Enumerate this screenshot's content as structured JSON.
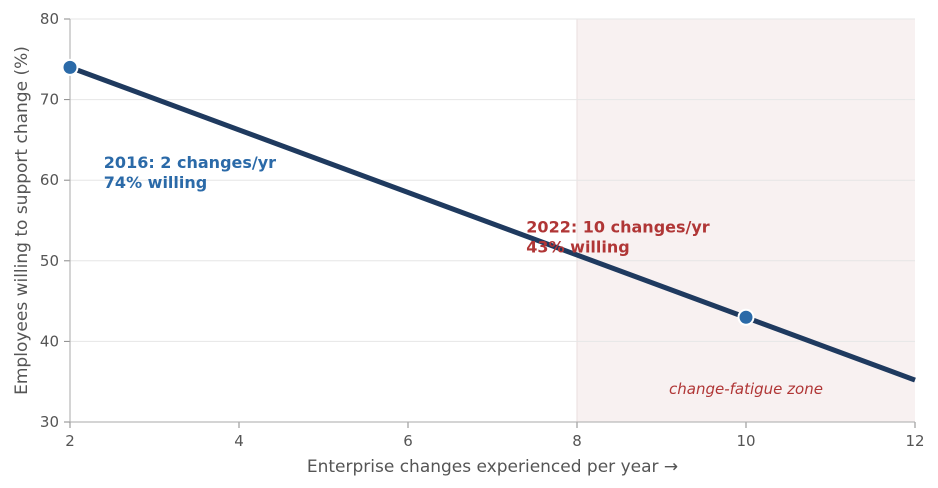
{
  "chart_data": {
    "type": "line",
    "title": "",
    "xlabel": "Enterprise changes experienced per year →",
    "ylabel": "Employees willing to support change (%)",
    "xlim": [
      2,
      12
    ],
    "ylim": [
      30,
      80
    ],
    "xticks": [
      2,
      4,
      6,
      8,
      10,
      12
    ],
    "yticks": [
      30,
      40,
      50,
      60,
      70,
      80
    ],
    "grid": "horizontal",
    "series": [
      {
        "x": [
          2,
          12
        ],
        "y": [
          74,
          35.2
        ],
        "color": "#1f3a5f"
      }
    ],
    "highlight_points": [
      {
        "x": 2,
        "y": 74,
        "color": "#2b6aa8"
      },
      {
        "x": 10,
        "y": 43,
        "color": "#2b6aa8"
      }
    ],
    "annotations": [
      {
        "lines": [
          "2016: 2 changes/yr",
          "74% willing"
        ],
        "x": 2.4,
        "y": 61.5,
        "color": "#2b6aa8"
      },
      {
        "lines": [
          "2022: 10 changes/yr",
          "43% willing"
        ],
        "x": 7.4,
        "y": 53.5,
        "color": "#b03636"
      }
    ],
    "shaded_region": {
      "x_from": 8,
      "x_to": 12,
      "label": "change-fatigue zone",
      "label_x": 10,
      "label_y": 33.5,
      "color": "#f8f1f1",
      "label_color": "#b03636"
    }
  }
}
